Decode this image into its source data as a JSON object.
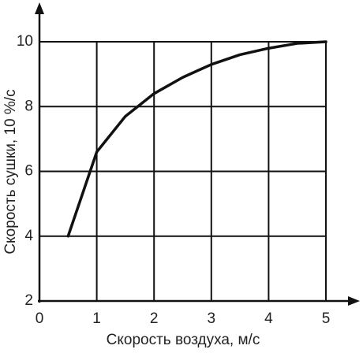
{
  "chart_data": {
    "type": "line",
    "x_label": "Скорость воздуха, м/с",
    "y_label": "Скорость сушки, 10 %/с",
    "x": [
      0.5,
      1,
      1.5,
      2,
      2.5,
      3,
      3.5,
      4,
      4.5,
      5
    ],
    "series": [
      {
        "color": "#111111",
        "values": [
          4,
          6.6,
          7.7,
          8.4,
          8.9,
          9.3,
          9.6,
          9.8,
          9.95,
          10
        ]
      }
    ],
    "xlim": [
      0,
      5
    ],
    "ylim": [
      2,
      10
    ],
    "xticks": [
      0,
      1,
      2,
      3,
      4,
      5
    ],
    "yticks": [
      2,
      4,
      6,
      8,
      10
    ],
    "grid": true
  }
}
